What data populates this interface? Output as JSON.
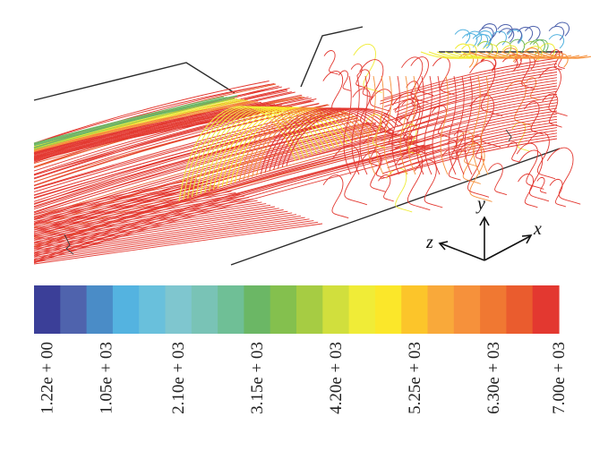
{
  "axes": {
    "x_label": "x",
    "y_label": "y",
    "z_label": "z"
  },
  "colorbar": {
    "colors": [
      "#3b3f98",
      "#4f63ad",
      "#4a8cc7",
      "#54b3e0",
      "#69c0dc",
      "#7fc6cf",
      "#79c3b6",
      "#6fbf96",
      "#6bb765",
      "#84c04e",
      "#a6cc43",
      "#d1df3d",
      "#f0ec37",
      "#fbe72a",
      "#fcc52a",
      "#f9a93a",
      "#f6913b",
      "#f07832",
      "#ea5c2e",
      "#e33830"
    ],
    "ticks": [
      {
        "label": "1.22e + 00",
        "slot": 0
      },
      {
        "label": "1.05e + 03",
        "slot": 2.25
      },
      {
        "label": "2.10e + 03",
        "slot": 5
      },
      {
        "label": "3.15e + 03",
        "slot": 8
      },
      {
        "label": "4.20e + 03",
        "slot": 11
      },
      {
        "label": "5.25e + 03",
        "slot": 14
      },
      {
        "label": "6.30e + 03",
        "slot": 17
      },
      {
        "label": "7.00e + 03",
        "slot": 19.5
      }
    ]
  }
}
